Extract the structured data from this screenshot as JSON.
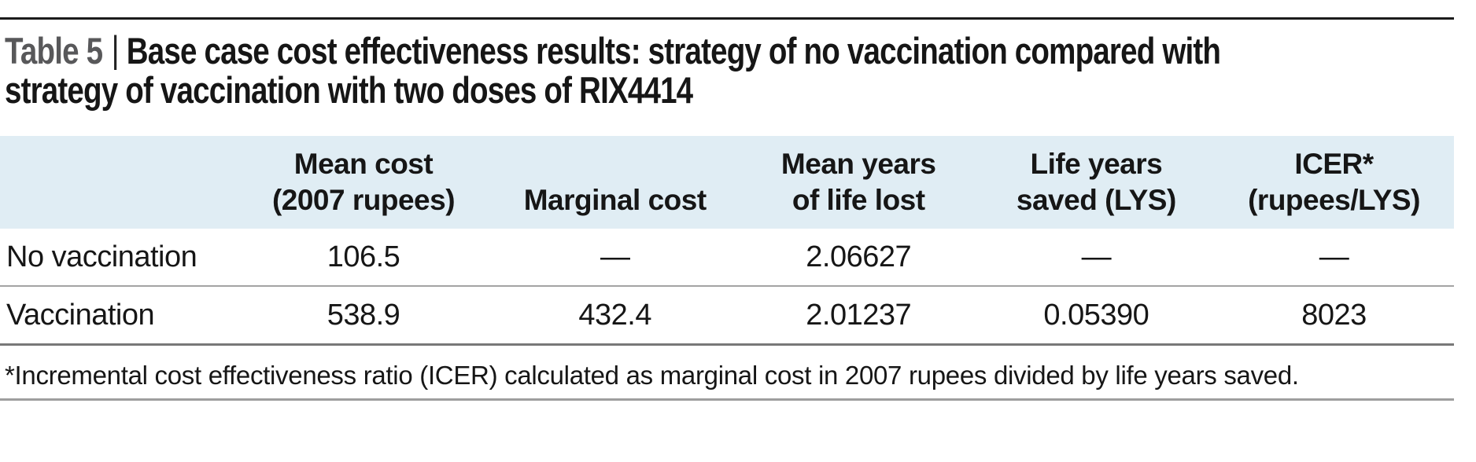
{
  "title": {
    "label": "Table 5",
    "separator": "|",
    "lines": [
      "Base case cost effectiveness results: strategy of no vaccination compared with",
      "strategy of vaccination with two doses of RIX4414"
    ]
  },
  "table": {
    "columns": [
      {
        "key": "label",
        "lines": [
          ""
        ]
      },
      {
        "key": "mean_cost",
        "lines": [
          "Mean cost",
          "(2007 rupees)"
        ]
      },
      {
        "key": "marginal_cost",
        "lines": [
          "Marginal cost"
        ]
      },
      {
        "key": "mean_years",
        "lines": [
          "Mean years",
          "of life lost"
        ]
      },
      {
        "key": "lys",
        "lines": [
          "Life years",
          "saved (LYS)"
        ]
      },
      {
        "key": "icer",
        "lines": [
          "ICER*",
          "(rupees/LYS)"
        ]
      }
    ],
    "rows": [
      {
        "label": "No vaccination",
        "mean_cost": "106.5",
        "marginal_cost": "—",
        "mean_years": "2.06627",
        "lys": "—",
        "icer": "—"
      },
      {
        "label": "Vaccination",
        "mean_cost": "538.9",
        "marginal_cost": "432.4",
        "mean_years": "2.01237",
        "lys": "0.05390",
        "icer": "8023"
      }
    ]
  },
  "footnote": "*Incremental cost effectiveness ratio (ICER) calculated as marginal cost in 2007 rupees divided by life years saved.",
  "colors": {
    "header_bg": "#e0edf4",
    "title_label": "#58585a",
    "text": "#161616",
    "rule_top": "#1c1c1c",
    "rule_row": "#a3a3a3",
    "rule_table_bottom": "#787878",
    "rule_page_bottom": "#9e9e9e",
    "bg": "#ffffff"
  }
}
